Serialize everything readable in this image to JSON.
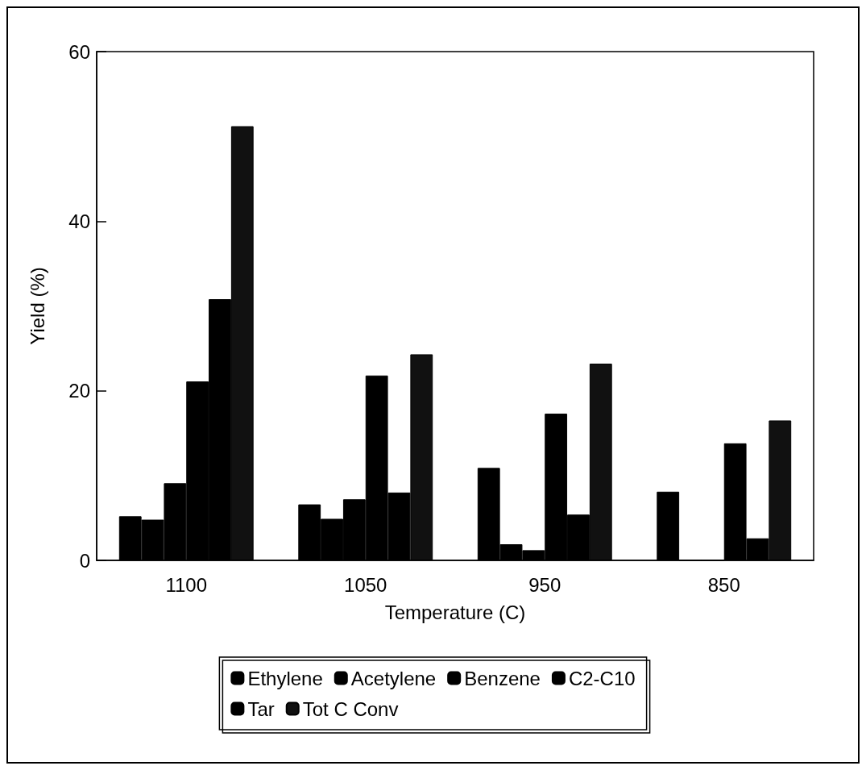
{
  "chart_data": {
    "type": "bar",
    "xlabel": "Temperature (C)",
    "ylabel": "Yield (%)",
    "categories": [
      "1100",
      "1050",
      "950",
      "850"
    ],
    "series": [
      {
        "name": "Ethylene",
        "color": "#000000",
        "values": [
          5.2,
          6.6,
          10.9,
          8.1
        ]
      },
      {
        "name": "Acetylene",
        "color": "#000000",
        "values": [
          4.8,
          4.9,
          1.9,
          0
        ]
      },
      {
        "name": "Benzene",
        "color": "#000000",
        "values": [
          9.1,
          7.2,
          1.2,
          0
        ]
      },
      {
        "name": "C2-C10",
        "color": "#000000",
        "values": [
          21.1,
          21.8,
          17.3,
          13.8
        ]
      },
      {
        "name": "Tar",
        "color": "#000000",
        "values": [
          30.8,
          8.0,
          5.4,
          2.6
        ]
      },
      {
        "name": "Tot C Conv",
        "color": "#111111",
        "values": [
          51.2,
          24.3,
          23.2,
          16.5
        ]
      }
    ],
    "ylim": [
      0,
      60
    ],
    "yticks": [
      0,
      20,
      40,
      60
    ],
    "grid": false,
    "legend": "bottom"
  }
}
